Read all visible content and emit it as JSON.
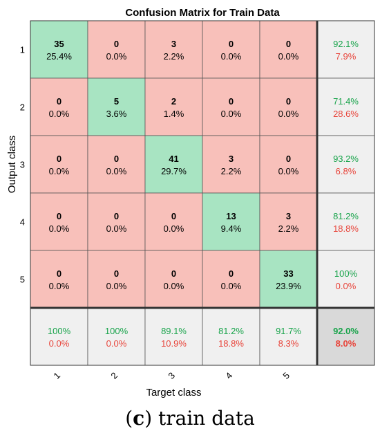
{
  "chart_data": {
    "type": "heatmap",
    "title": "Confusion Matrix for Train Data",
    "xlabel": "Target class",
    "ylabel": "Output class",
    "x_tick_labels": [
      "1",
      "2",
      "3",
      "4",
      "5"
    ],
    "y_tick_labels": [
      "1",
      "2",
      "3",
      "4",
      "5"
    ],
    "counts": [
      [
        35,
        0,
        3,
        0,
        0
      ],
      [
        0,
        5,
        2,
        0,
        0
      ],
      [
        0,
        0,
        41,
        3,
        0
      ],
      [
        0,
        0,
        0,
        13,
        3
      ],
      [
        0,
        0,
        0,
        0,
        33
      ]
    ],
    "percents": [
      [
        "25.4%",
        "0.0%",
        "2.2%",
        "0.0%",
        "0.0%"
      ],
      [
        "0.0%",
        "3.6%",
        "1.4%",
        "0.0%",
        "0.0%"
      ],
      [
        "0.0%",
        "0.0%",
        "29.7%",
        "2.2%",
        "0.0%"
      ],
      [
        "0.0%",
        "0.0%",
        "0.0%",
        "9.4%",
        "2.2%"
      ],
      [
        "0.0%",
        "0.0%",
        "0.0%",
        "0.0%",
        "23.9%"
      ]
    ],
    "row_summary": [
      {
        "correct": "92.1%",
        "error": "7.9%"
      },
      {
        "correct": "71.4%",
        "error": "28.6%"
      },
      {
        "correct": "93.2%",
        "error": "6.8%"
      },
      {
        "correct": "81.2%",
        "error": "18.8%"
      },
      {
        "correct": "100%",
        "error": "0.0%"
      }
    ],
    "col_summary": [
      {
        "correct": "100%",
        "error": "0.0%"
      },
      {
        "correct": "100%",
        "error": "0.0%"
      },
      {
        "correct": "89.1%",
        "error": "10.9%"
      },
      {
        "correct": "81.2%",
        "error": "18.8%"
      },
      {
        "correct": "91.7%",
        "error": "8.3%"
      }
    ],
    "overall": {
      "correct": "92.0%",
      "error": "8.0%"
    },
    "colors": {
      "diagonal": "#a8e4c2",
      "off_diagonal": "#f8c0ba",
      "summary": "#f0f0f0",
      "overall": "#d9d9d9",
      "correct_text": "#17a34a",
      "error_text": "#e8443a"
    }
  },
  "caption": {
    "label": "c",
    "text": " train data"
  }
}
